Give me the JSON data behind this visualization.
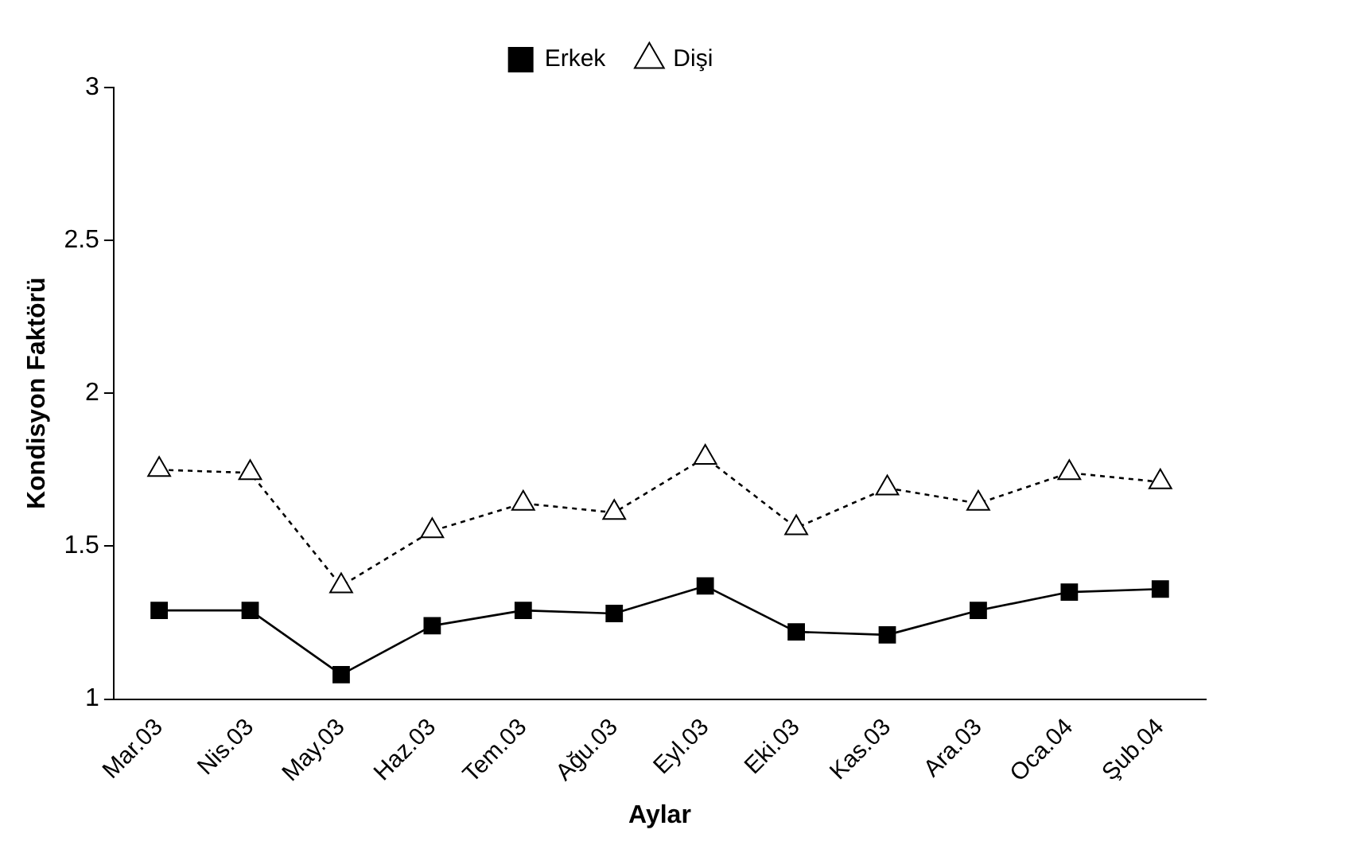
{
  "chart_data": {
    "type": "line",
    "xlabel": "Aylar",
    "ylabel": "Kondisyon Faktörü",
    "categories": [
      "Mar.03",
      "Nis.03",
      "May.03",
      "Haz.03",
      "Tem.03",
      "Ağu.03",
      "Eyl.03",
      "Eki.03",
      "Kas.03",
      "Ara.03",
      "Oca.04",
      "Şub.04"
    ],
    "series": [
      {
        "name": "Erkek",
        "color": "#000000",
        "marker": "square",
        "line_style": "solid",
        "values": [
          1.29,
          1.29,
          1.08,
          1.24,
          1.29,
          1.28,
          1.37,
          1.22,
          1.21,
          1.29,
          1.35,
          1.36
        ]
      },
      {
        "name": "Dişi",
        "color": "#000000",
        "marker": "triangle",
        "line_style": "dotted",
        "values": [
          1.75,
          1.74,
          1.37,
          1.55,
          1.64,
          1.61,
          1.79,
          1.56,
          1.69,
          1.64,
          1.74,
          1.71
        ]
      }
    ],
    "ylim": [
      1,
      3
    ],
    "yticks": [
      1,
      1.5,
      2,
      2.5,
      3
    ],
    "grid": false,
    "legend": "top"
  }
}
